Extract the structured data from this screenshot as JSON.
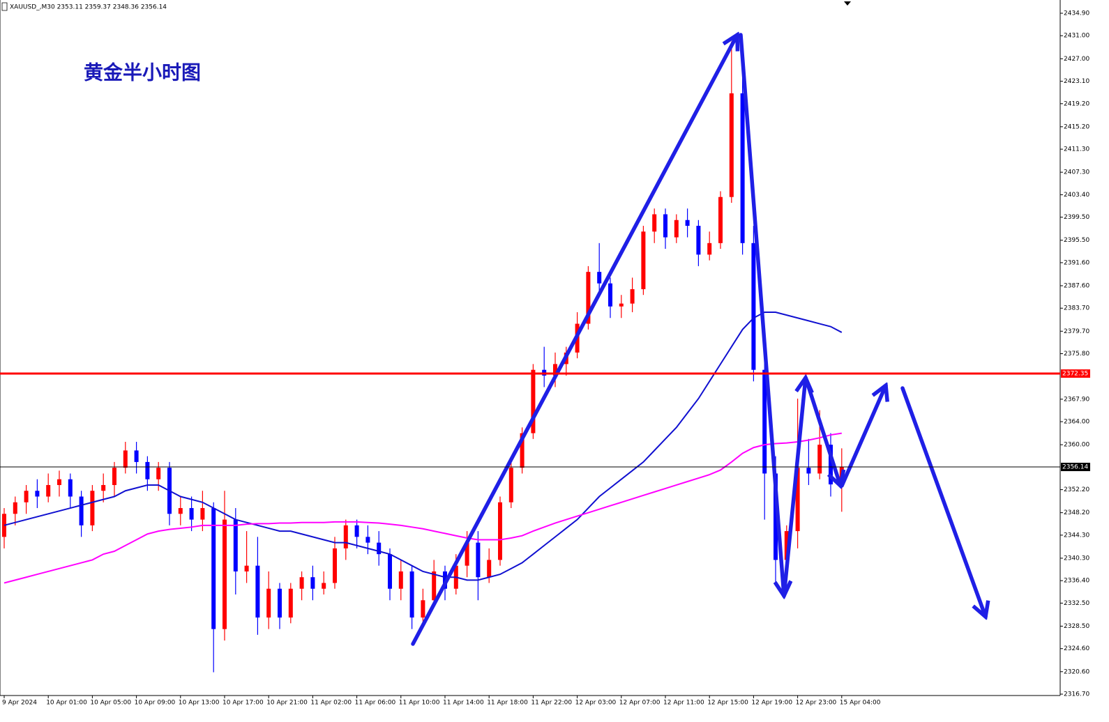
{
  "chart_data": {
    "type": "candlestick",
    "header": "XAUUSD_,M30  2353.11 2359.37 2348.36 2356.14",
    "title": "黄金半小时图",
    "categories": [
      "9 Apr 2024",
      null,
      null,
      null,
      "10 Apr 01:00",
      null,
      null,
      null,
      "10 Apr 05:00",
      null,
      null,
      null,
      "10 Apr 09:00",
      null,
      null,
      null,
      "10 Apr 13:00",
      null,
      null,
      null,
      "10 Apr 17:00",
      null,
      null,
      null,
      "10 Apr 21:00",
      null,
      null,
      null,
      "11 Apr 02:00",
      null,
      null,
      null,
      "11 Apr 06:00",
      null,
      null,
      null,
      "11 Apr 10:00",
      null,
      null,
      null,
      "11 Apr 14:00",
      null,
      null,
      null,
      "11 Apr 18:00",
      null,
      null,
      null,
      "11 Apr 22:00",
      null,
      null,
      null,
      "12 Apr 03:00",
      null,
      null,
      null,
      "12 Apr 07:00",
      null,
      null,
      null,
      "12 Apr 11:00",
      null,
      null,
      null,
      "12 Apr 15:00",
      null,
      null,
      null,
      "12 Apr 19:00",
      null,
      null,
      null,
      "12 Apr 23:00",
      null,
      null,
      null,
      "15 Apr 04:00"
    ],
    "open": [
      2344,
      2348,
      2350,
      2352,
      2351,
      2353,
      2354,
      2351,
      2346,
      2352,
      2353,
      2356,
      2359,
      2357,
      2354,
      2356,
      2348,
      2349,
      2347,
      2349,
      2328,
      2347,
      2338,
      2339,
      2330,
      2335,
      2330,
      2335,
      2337,
      2335,
      2336,
      2342,
      2346,
      2344,
      2343,
      2341,
      2335,
      2338,
      2330,
      2333,
      2338,
      2335,
      2339,
      2343,
      2337,
      2340,
      2350,
      2356,
      2362,
      2373,
      2372,
      2374,
      2376,
      2381,
      2390,
      2388,
      2384,
      2384.5,
      2387,
      2397,
      2400,
      2396,
      2399,
      2398,
      2393,
      2395,
      2403,
      2421,
      2395,
      2373,
      2355,
      2340,
      2345,
      2356,
      2355,
      2360,
      2353.11
    ],
    "high": [
      2349,
      2351,
      2353,
      2354,
      2355,
      2355.5,
      2355,
      2352,
      2353,
      2355,
      2357,
      2360.5,
      2360.5,
      2358,
      2357,
      2357,
      2351,
      2351,
      2352,
      2350,
      2352,
      2349,
      2345,
      2344,
      2338,
      2336,
      2336,
      2338,
      2339,
      2338,
      2344,
      2347,
      2347,
      2346,
      2345,
      2342,
      2340,
      2339,
      2335,
      2340,
      2339,
      2341,
      2345,
      2345,
      2342,
      2351,
      2357,
      2363,
      2374,
      2377,
      2376,
      2377,
      2383,
      2391,
      2395,
      2389,
      2386,
      2389,
      2398,
      2401,
      2401,
      2400,
      2401,
      2399,
      2397,
      2404,
      2430,
      2429,
      2398,
      2375,
      2358,
      2346,
      2368,
      2361,
      2366,
      2362,
      2359.37
    ],
    "low": [
      2342,
      2346,
      2348,
      2349,
      2350,
      2351,
      2349,
      2344,
      2345,
      2350,
      2351,
      2355,
      2355,
      2352,
      2352,
      2346,
      2346,
      2345,
      2345,
      2320.5,
      2326,
      2334,
      2336,
      2327,
      2328,
      2328,
      2329,
      2333,
      2333,
      2334,
      2335,
      2340,
      2342,
      2341,
      2339,
      2333,
      2333,
      2328,
      2329,
      2332,
      2333,
      2334,
      2337,
      2333,
      2336,
      2339,
      2349,
      2355,
      2361,
      2370,
      2370,
      2372,
      2375,
      2380,
      2386,
      2382,
      2382,
      2383,
      2386,
      2395,
      2394,
      2395,
      2396,
      2391,
      2392,
      2394,
      2402,
      2393,
      2371,
      2347,
      2336,
      2338,
      2342,
      2353,
      2354,
      2351,
      2348.36
    ],
    "close": [
      2348,
      2350,
      2352,
      2351,
      2353,
      2354,
      2351,
      2346,
      2352,
      2353,
      2356,
      2359,
      2357,
      2354,
      2356,
      2348,
      2349,
      2347,
      2349,
      2328,
      2347,
      2338,
      2339,
      2330,
      2335,
      2330,
      2335,
      2337,
      2335,
      2336,
      2342,
      2346,
      2344,
      2343,
      2341,
      2335,
      2338,
      2330,
      2333,
      2338,
      2335,
      2339,
      2343,
      2337,
      2340,
      2350,
      2356,
      2362,
      2373,
      2372,
      2374,
      2376,
      2381,
      2390,
      2388,
      2384,
      2384.5,
      2387,
      2397,
      2400,
      2396,
      2399,
      2398,
      2393,
      2395,
      2403,
      2421,
      2395,
      2373,
      2355,
      2340,
      2345,
      2356,
      2355,
      2360,
      2353.11,
      2356.14
    ],
    "up_color": "#ff0000",
    "down_color": "#0000ff",
    "moving_averages": [
      {
        "color": "#1010d0",
        "values": [
          2346,
          2346.5,
          2347,
          2347.5,
          2348,
          2348.5,
          2349,
          2349.5,
          2350,
          2350.5,
          2351,
          2352,
          2352.5,
          2353,
          2353,
          2352,
          2351,
          2350.5,
          2350,
          2349,
          2348,
          2347,
          2346.5,
          2346,
          2345.5,
          2345,
          2345,
          2344.5,
          2344,
          2343.5,
          2343,
          2343,
          2342.5,
          2342,
          2341.5,
          2341,
          2340,
          2339,
          2338,
          2337.5,
          2337,
          2337,
          2336.5,
          2336.5,
          2337,
          2337.5,
          2338.5,
          2339.5,
          2341,
          2342.5,
          2344,
          2345.5,
          2347,
          2349,
          2351,
          2352.5,
          2354,
          2355.5,
          2357,
          2359,
          2361,
          2363,
          2365.5,
          2368,
          2371,
          2374,
          2377,
          2380,
          2382,
          2383,
          2383,
          2382.5,
          2382,
          2381.5,
          2381,
          2380.5,
          2379.5
        ]
      },
      {
        "color": "#ff00ff",
        "values": [
          2336,
          2336.5,
          2337,
          2337.5,
          2338,
          2338.5,
          2339,
          2339.5,
          2340,
          2341,
          2341.5,
          2342.5,
          2343.5,
          2344.5,
          2345,
          2345.3,
          2345.5,
          2345.7,
          2346,
          2346,
          2346,
          2346,
          2346.2,
          2346.3,
          2346.3,
          2346.4,
          2346.4,
          2346.5,
          2346.5,
          2346.5,
          2346.6,
          2346.6,
          2346.6,
          2346.5,
          2346.4,
          2346.2,
          2346,
          2345.7,
          2345.4,
          2345,
          2344.6,
          2344.2,
          2343.8,
          2343.5,
          2343.5,
          2343.5,
          2343.8,
          2344.2,
          2345,
          2345.7,
          2346.4,
          2347,
          2347.6,
          2348.2,
          2348.8,
          2349.4,
          2350,
          2350.6,
          2351.2,
          2351.8,
          2352.4,
          2353,
          2353.6,
          2354.2,
          2354.8,
          2355.6,
          2357,
          2358.5,
          2359.5,
          2360,
          2360.2,
          2360.3,
          2360.5,
          2360.8,
          2361.2,
          2361.7,
          2362
        ]
      }
    ],
    "hlines": [
      {
        "value": 2372.35,
        "color": "#ff0000"
      },
      {
        "value": 2356.14,
        "color": "#000000"
      }
    ],
    "ylim": [
      2316.46,
      2437.2
    ],
    "yticks": [
      {
        "value": 2434.9,
        "label": "2434.90"
      },
      {
        "value": 2431,
        "label": "2431.00"
      },
      {
        "value": 2427,
        "label": "2427.00"
      },
      {
        "value": 2423.1,
        "label": "2423.10"
      },
      {
        "value": 2419.2,
        "label": "2419.20"
      },
      {
        "value": 2415.2,
        "label": "2415.20"
      },
      {
        "value": 2411.3,
        "label": "2411.30"
      },
      {
        "value": 2407.3,
        "label": "2407.30"
      },
      {
        "value": 2403.4,
        "label": "2403.40"
      },
      {
        "value": 2399.5,
        "label": "2399.50"
      },
      {
        "value": 2395.5,
        "label": "2395.50"
      },
      {
        "value": 2391.6,
        "label": "2391.60"
      },
      {
        "value": 2387.6,
        "label": "2387.60"
      },
      {
        "value": 2383.7,
        "label": "2383.70"
      },
      {
        "value": 2379.7,
        "label": "2379.70"
      },
      {
        "value": 2375.8,
        "label": "2375.80"
      },
      {
        "value": 2367.9,
        "label": "2367.90"
      },
      {
        "value": 2364,
        "label": "2364.00"
      },
      {
        "value": 2360,
        "label": "2360.00"
      },
      {
        "value": 2352.2,
        "label": "2352.20"
      },
      {
        "value": 2348.2,
        "label": "2348.20"
      },
      {
        "value": 2344.3,
        "label": "2344.30"
      },
      {
        "value": 2340.3,
        "label": "2340.30"
      },
      {
        "value": 2336.4,
        "label": "2336.40"
      },
      {
        "value": 2332.5,
        "label": "2332.50"
      },
      {
        "value": 2328.5,
        "label": "2328.50"
      },
      {
        "value": 2324.6,
        "label": "2324.60"
      },
      {
        "value": 2320.6,
        "label": "2320.60"
      },
      {
        "value": 2316.7,
        "label": "2316.70"
      }
    ]
  }
}
